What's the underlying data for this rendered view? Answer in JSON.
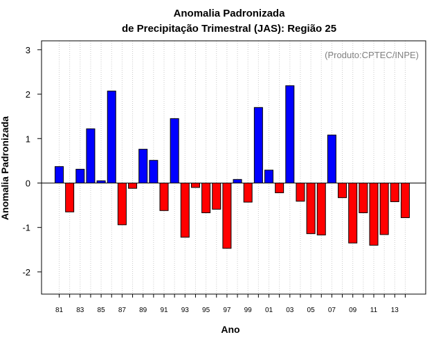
{
  "chart_data": {
    "type": "bar",
    "title": [
      "Anomalia Padronizada",
      "de Precipitação Trimestral (JAS): Região 25"
    ],
    "xlabel": "Ano",
    "ylabel": "Anomalia Padronizada",
    "annotation": "(Produto:CPTEC/INPE)",
    "ylim": [
      -2.5,
      3.2
    ],
    "yticks": [
      -2,
      -1,
      0,
      1,
      2,
      3
    ],
    "grid": "vertical dotted",
    "colors": {
      "positive": "#0000ff",
      "negative": "#ff0000",
      "grid": "#c8c8c8"
    },
    "categories": [
      "81",
      "82",
      "83",
      "84",
      "85",
      "86",
      "87",
      "88",
      "89",
      "90",
      "91",
      "92",
      "93",
      "94",
      "95",
      "96",
      "97",
      "98",
      "99",
      "00",
      "01",
      "02",
      "03",
      "04",
      "05",
      "06",
      "07",
      "08",
      "09",
      "10",
      "11",
      "12",
      "13",
      "14"
    ],
    "xtick_labels": [
      "81",
      "83",
      "85",
      "87",
      "89",
      "91",
      "93",
      "95",
      "97",
      "99",
      "01",
      "03",
      "05",
      "07",
      "09",
      "11",
      "13"
    ],
    "values": [
      0.37,
      -0.65,
      0.31,
      1.22,
      0.05,
      2.07,
      -0.94,
      -0.12,
      0.76,
      0.51,
      -0.62,
      1.45,
      -1.22,
      -0.1,
      -0.67,
      -0.59,
      -1.47,
      0.08,
      -0.43,
      1.7,
      0.29,
      -0.22,
      2.19,
      -0.41,
      -1.14,
      -1.17,
      1.08,
      -0.33,
      -1.35,
      -0.67,
      -1.4,
      -1.16,
      -0.42,
      -0.78
    ]
  }
}
